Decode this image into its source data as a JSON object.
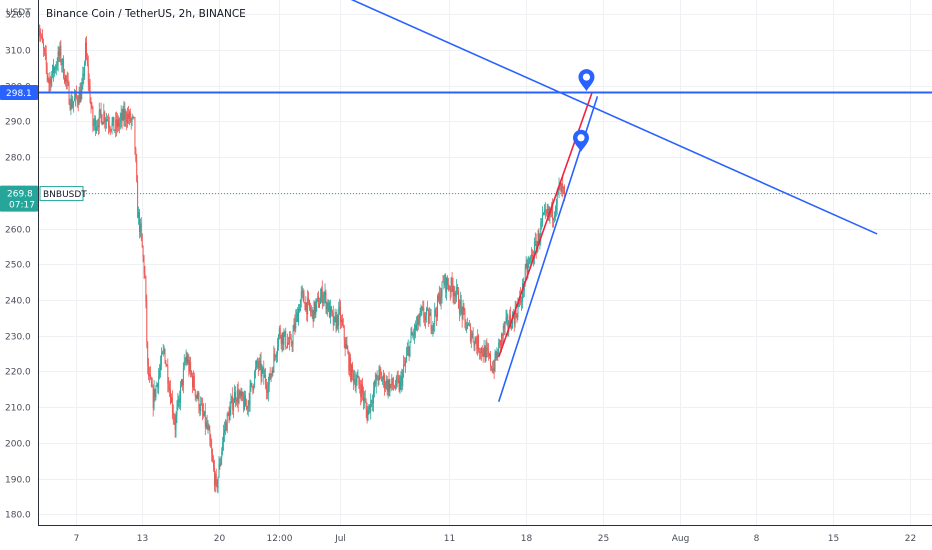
{
  "header": {
    "title": "Binance Coin / TetherUS, 2h, BINANCE"
  },
  "axis": {
    "unit_label": "USDT"
  },
  "price_tags": {
    "level": {
      "value": "298.1",
      "color": "#2962ff"
    },
    "last": {
      "value": "269.8",
      "countdown": "07:17",
      "color": "#26a69a"
    },
    "symbol": "BNBUSDT"
  },
  "colors": {
    "up": "#26a69a",
    "down": "#ef5350",
    "trend_blue": "#2962ff",
    "trend_red": "#f0243e",
    "grid": "#eef0f3"
  },
  "icons": [
    "map-pin-icon",
    "map-pin-icon"
  ],
  "chart_data": {
    "type": "candlestick",
    "title": "Binance Coin / TetherUS, 2h, BINANCE",
    "symbol": "BNBUSDT",
    "y_unit": "USDT",
    "ylim": [
      177,
      324
    ],
    "yticks": [
      180.0,
      190.0,
      200.0,
      210.0,
      220.0,
      230.0,
      240.0,
      250.0,
      260.0,
      270.0,
      280.0,
      290.0,
      300.0,
      310.0,
      320.0
    ],
    "ytick_labels": [
      "180.0",
      "190.0",
      "200.0",
      "210.0",
      "220.0",
      "230.0",
      "240.0",
      "250.0",
      "260.0",
      "270.0",
      "280.0",
      "290.0",
      "300.0",
      "310.0",
      "320.0"
    ],
    "xlim": [
      "2021-06-03T12:00",
      "2021-08-24T00:00"
    ],
    "xticks": [
      "2021-06-07",
      "2021-06-13",
      "2021-06-20",
      "2021-06-25T12:00",
      "2021-07-01",
      "2021-07-11",
      "2021-07-18",
      "2021-07-25",
      "2021-08-01",
      "2021-08-08",
      "2021-08-15",
      "2021-08-22"
    ],
    "xtick_labels": [
      "7",
      "13",
      "20",
      "12:00",
      "Jul",
      "11",
      "18",
      "25",
      "Aug",
      "8",
      "15",
      "22"
    ],
    "grid": true,
    "price_path": [
      [
        "2021-06-03T12:00",
        318
      ],
      [
        "2021-06-04T12:00",
        301
      ],
      [
        "2021-06-05T12:00",
        309
      ],
      [
        "2021-06-06T12:00",
        295
      ],
      [
        "2021-06-07T12:00",
        298
      ],
      [
        "2021-06-07T20:00",
        310
      ],
      [
        "2021-06-08T12:00",
        289
      ],
      [
        "2021-06-09T12:00",
        292
      ],
      [
        "2021-06-10T12:00",
        288
      ],
      [
        "2021-06-11T12:00",
        292
      ],
      [
        "2021-06-12T06:00",
        289
      ],
      [
        "2021-06-12T14:00",
        265
      ],
      [
        "2021-06-12T22:00",
        257
      ],
      [
        "2021-06-13T06:00",
        246
      ],
      [
        "2021-06-13T12:00",
        220
      ],
      [
        "2021-06-14T00:00",
        212
      ],
      [
        "2021-06-15T00:00",
        226
      ],
      [
        "2021-06-16T00:00",
        205
      ],
      [
        "2021-06-17T00:00",
        224
      ],
      [
        "2021-06-18T00:00",
        213
      ],
      [
        "2021-06-19T00:00",
        203
      ],
      [
        "2021-06-19T18:00",
        187
      ],
      [
        "2021-06-20T12:00",
        204
      ],
      [
        "2021-06-21T12:00",
        214
      ],
      [
        "2021-06-22T12:00",
        210
      ],
      [
        "2021-06-23T12:00",
        222
      ],
      [
        "2021-06-24T12:00",
        216
      ],
      [
        "2021-06-25T12:00",
        231
      ],
      [
        "2021-06-26T12:00",
        227
      ],
      [
        "2021-06-27T12:00",
        241
      ],
      [
        "2021-06-28T12:00",
        236
      ],
      [
        "2021-06-29T12:00",
        242
      ],
      [
        "2021-06-30T12:00",
        233
      ],
      [
        "2021-07-01T00:00",
        236
      ],
      [
        "2021-07-02T00:00",
        220
      ],
      [
        "2021-07-03T00:00",
        215
      ],
      [
        "2021-07-03T12:00",
        208
      ],
      [
        "2021-07-04T12:00",
        219
      ],
      [
        "2021-07-05T12:00",
        216
      ],
      [
        "2021-07-06T12:00",
        216
      ],
      [
        "2021-07-07T12:00",
        229
      ],
      [
        "2021-07-08T12:00",
        236
      ],
      [
        "2021-07-09T12:00",
        234
      ],
      [
        "2021-07-10T12:00",
        245
      ],
      [
        "2021-07-11T12:00",
        243
      ],
      [
        "2021-07-12T12:00",
        233
      ],
      [
        "2021-07-13T12:00",
        228
      ],
      [
        "2021-07-14T12:00",
        224
      ],
      [
        "2021-07-15T00:00",
        221
      ],
      [
        "2021-07-16T00:00",
        232
      ],
      [
        "2021-07-17T00:00",
        236
      ],
      [
        "2021-07-17T12:00",
        240
      ],
      [
        "2021-07-18T00:00",
        248
      ],
      [
        "2021-07-19T00:00",
        256
      ],
      [
        "2021-07-19T12:00",
        262
      ],
      [
        "2021-07-20T12:00",
        265
      ],
      [
        "2021-07-21T00:00",
        271
      ],
      [
        "2021-07-21T12:00",
        269.8
      ]
    ],
    "drawings": [
      {
        "name": "horizontal-level",
        "color": "#2962ff",
        "price": 298.1
      },
      {
        "name": "descending-trendline",
        "color": "#2962ff",
        "points": [
          [
            "2021-06-30T00:00",
            327
          ],
          [
            "2021-08-19T00:00",
            258.5
          ]
        ]
      },
      {
        "name": "channel-upper-red",
        "color": "#f0243e",
        "points": [
          [
            "2021-07-15T12:00",
            224
          ],
          [
            "2021-07-24T00:00",
            298
          ]
        ]
      },
      {
        "name": "channel-lower-blue",
        "color": "#2962ff",
        "points": [
          [
            "2021-07-15T12:00",
            211.5
          ],
          [
            "2021-07-24T12:00",
            297
          ]
        ]
      }
    ],
    "markers": [
      {
        "icon": "map-pin-icon",
        "time": "2021-07-23T12:00",
        "price": 298.5
      },
      {
        "icon": "map-pin-icon",
        "time": "2021-07-23T00:00",
        "price": 281.5
      }
    ],
    "last_price": 269.8,
    "level_price": 298.1
  }
}
